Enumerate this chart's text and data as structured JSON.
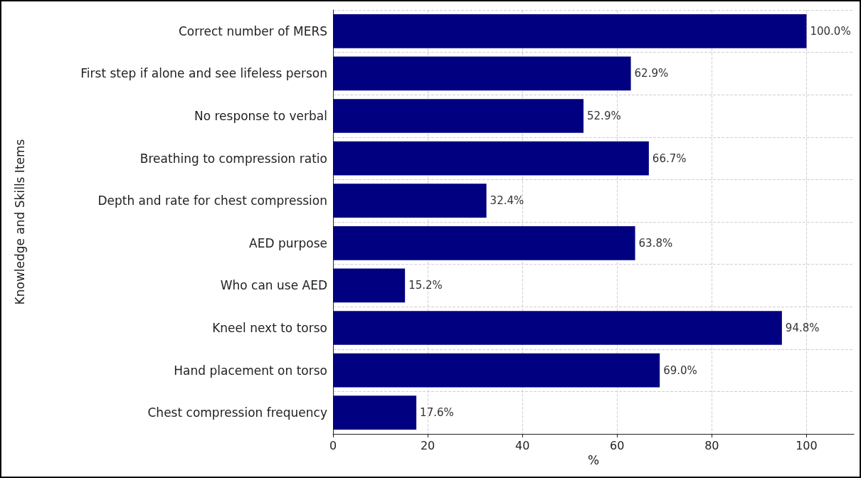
{
  "chart_data": {
    "type": "bar",
    "orientation": "horizontal",
    "xlabel": "%",
    "ylabel": "Knowledge and Skills Items",
    "categories": [
      "Correct number of MERS",
      "First step if alone and see lifeless person",
      "No response to verbal",
      "Breathing to compression ratio",
      "Depth and rate for chest compression",
      "AED purpose",
      "Who can use AED",
      "Kneel next to torso",
      "Hand placement on torso",
      "Chest compression frequency"
    ],
    "values": [
      100.0,
      62.9,
      52.9,
      66.7,
      32.4,
      63.8,
      15.2,
      94.8,
      69.0,
      17.6
    ],
    "value_labels": [
      "100.0%",
      "62.9%",
      "52.9%",
      "66.7%",
      "32.4%",
      "63.8%",
      "15.2%",
      "94.8%",
      "69.0%",
      "17.6%"
    ],
    "color": "#000080",
    "xlim": [
      0,
      110
    ],
    "xticks": [
      0,
      20,
      40,
      60,
      80,
      100
    ],
    "grid": true
  }
}
